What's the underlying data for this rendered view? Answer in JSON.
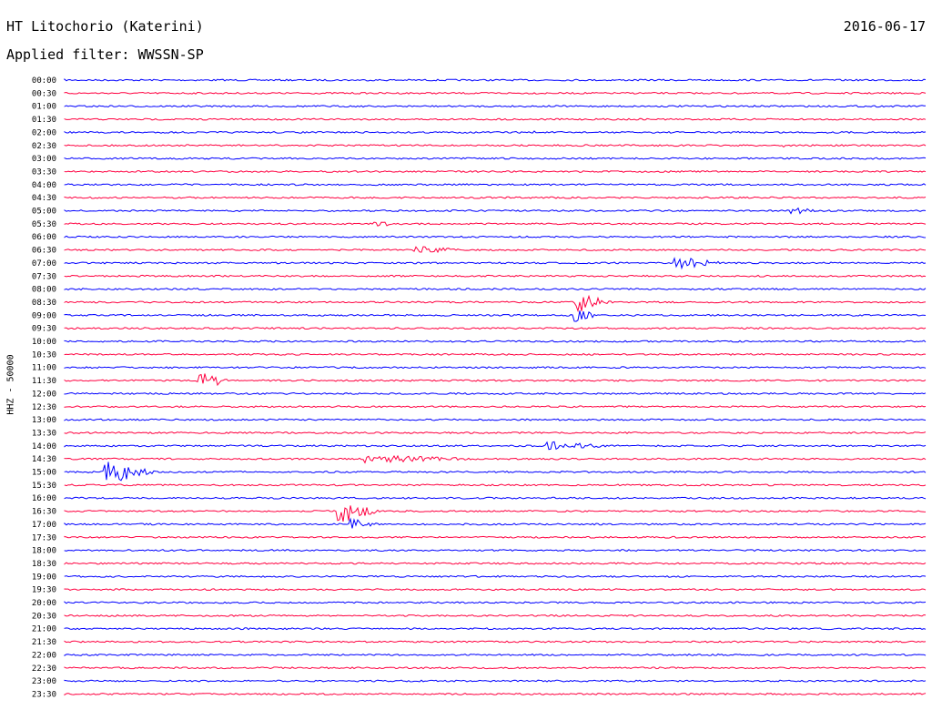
{
  "header": {
    "station": "HT Litochorio (Katerini)",
    "date": "2016-06-17",
    "filter_label": "Applied filter: WWSSN-SP"
  },
  "chart_data": {
    "type": "line",
    "title": "HT Litochorio (Katerini)",
    "ylabel": "HHZ - 50000",
    "row_labels": [
      "00:00",
      "00:30",
      "01:00",
      "01:30",
      "02:00",
      "02:30",
      "03:00",
      "03:30",
      "04:00",
      "04:30",
      "05:00",
      "05:30",
      "06:00",
      "06:30",
      "07:00",
      "07:30",
      "08:00",
      "08:30",
      "09:00",
      "09:30",
      "10:00",
      "10:30",
      "11:00",
      "11:30",
      "12:00",
      "12:30",
      "13:00",
      "13:30",
      "14:00",
      "14:30",
      "15:00",
      "15:30",
      "16:00",
      "16:30",
      "17:00",
      "17:30",
      "18:00",
      "18:30",
      "19:00",
      "19:30",
      "20:00",
      "20:30",
      "21:00",
      "21:30",
      "22:00",
      "22:30",
      "23:00",
      "23:30"
    ],
    "series_colors": [
      "#0000ff",
      "#ff0040"
    ],
    "grid": false
  }
}
